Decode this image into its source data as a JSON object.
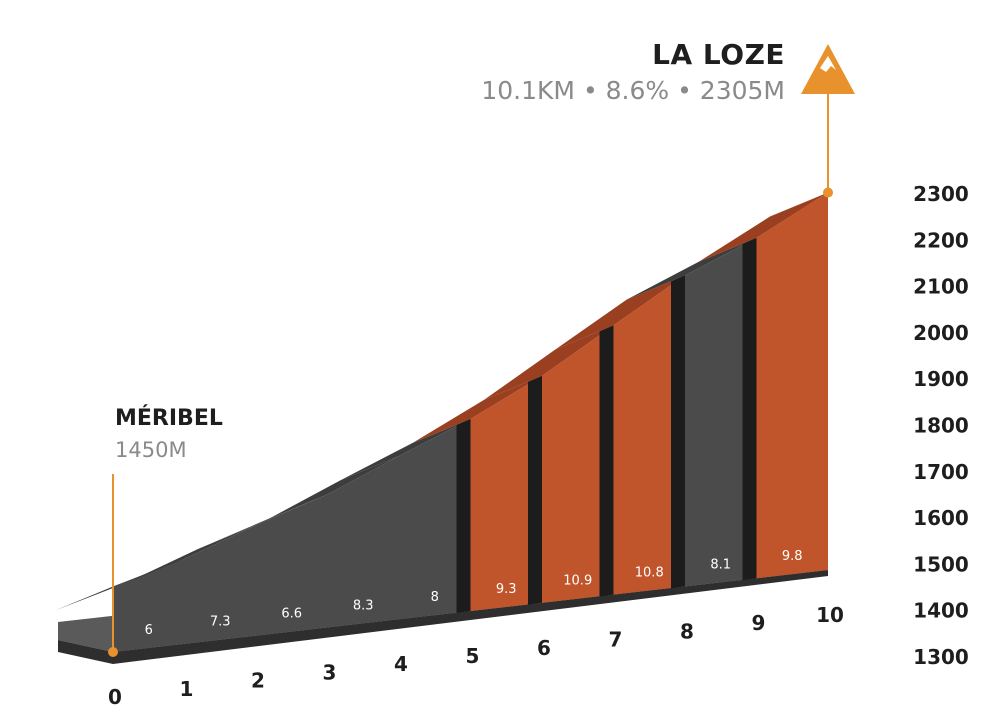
{
  "summit": {
    "name": "LA LOZE",
    "stats": "10.1KM • 8.6% • 2305M"
  },
  "start": {
    "name": "MÉRIBEL",
    "elevation": "1450M"
  },
  "colors": {
    "dark": "#4b4b4b",
    "dark_top": "#3d3d3d",
    "orange": "#c0542b",
    "orange_top": "#9a3f1f",
    "divider": "#1c1c1c",
    "marker": "#e8922e"
  },
  "icons": {
    "summit": "mountain-icon"
  },
  "chart_data": {
    "type": "area",
    "title": "",
    "xlabel": "",
    "ylabel": "",
    "x_ticks": [
      "0",
      "1",
      "2",
      "3",
      "4",
      "5",
      "6",
      "7",
      "8",
      "9",
      "10"
    ],
    "y_ticks": [
      "1300",
      "1400",
      "1500",
      "1600",
      "1700",
      "1800",
      "1900",
      "2000",
      "2100",
      "2200",
      "2300"
    ],
    "xlim": [
      0,
      10
    ],
    "ylim": [
      1300,
      2300
    ],
    "segments": [
      {
        "km": 0,
        "gradient": "6",
        "level": "dark"
      },
      {
        "km": 1,
        "gradient": "7.3",
        "level": "dark"
      },
      {
        "km": 2,
        "gradient": "6.6",
        "level": "dark"
      },
      {
        "km": 3,
        "gradient": "8.3",
        "level": "dark"
      },
      {
        "km": 4,
        "gradient": "8",
        "level": "dark"
      },
      {
        "km": 5,
        "gradient": "9.3",
        "level": "orange"
      },
      {
        "km": 6,
        "gradient": "10.9",
        "level": "orange"
      },
      {
        "km": 7,
        "gradient": "10.8",
        "level": "orange"
      },
      {
        "km": 8,
        "gradient": "8.1",
        "level": "dark"
      },
      {
        "km": 9,
        "gradient": "9.8",
        "level": "orange"
      }
    ],
    "profile": [
      {
        "x": 0,
        "y": 1450
      },
      {
        "x": 1,
        "y": 1510
      },
      {
        "x": 2,
        "y": 1583
      },
      {
        "x": 3,
        "y": 1649
      },
      {
        "x": 4,
        "y": 1732
      },
      {
        "x": 5,
        "y": 1812
      },
      {
        "x": 6,
        "y": 1905
      },
      {
        "x": 7,
        "y": 2014
      },
      {
        "x": 8,
        "y": 2122
      },
      {
        "x": 9,
        "y": 2203
      },
      {
        "x": 10,
        "y": 2301
      }
    ],
    "grid": false
  }
}
